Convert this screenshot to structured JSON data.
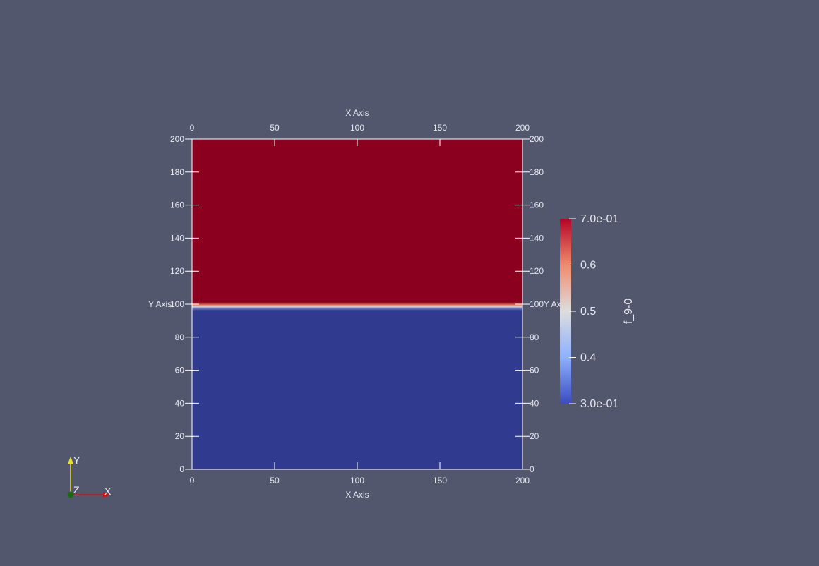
{
  "chart_data": {
    "type": "heatmap",
    "field": "f_9-0",
    "x_axis_title": "X Axis",
    "y_axis_title": "Y Axis",
    "y_axis_title_right": "Y Ax",
    "xlim": [
      0,
      200
    ],
    "ylim": [
      0,
      200
    ],
    "x_ticks": [
      0,
      50,
      100,
      150,
      200
    ],
    "y_ticks": [
      0,
      20,
      40,
      60,
      80,
      100,
      120,
      140,
      160,
      180,
      200
    ],
    "interface_y": 100,
    "upper_value": 0.7,
    "lower_value": 0.3,
    "colorbar": {
      "title": "f_9-0",
      "min": 0.3,
      "max": 0.7,
      "labels": [
        {
          "value": 0.7,
          "text": "7.0e-01"
        },
        {
          "value": 0.6,
          "text": "0.6"
        },
        {
          "value": 0.5,
          "text": "0.5"
        },
        {
          "value": 0.4,
          "text": "0.4"
        },
        {
          "value": 0.3,
          "text": "3.0e-01"
        }
      ]
    },
    "colormap": [
      "#3b4cc0",
      "#dddddd",
      "#b40426"
    ]
  },
  "orientation_triad": {
    "x": "X",
    "y": "Y",
    "z": "Z"
  },
  "colors": {
    "background": "#52576e",
    "upper_region": "#8c001f",
    "lower_region": "#303b8f",
    "x_arrow": "#d01010",
    "y_arrow": "#e8e020",
    "z_dot": "#1a6a1a"
  }
}
